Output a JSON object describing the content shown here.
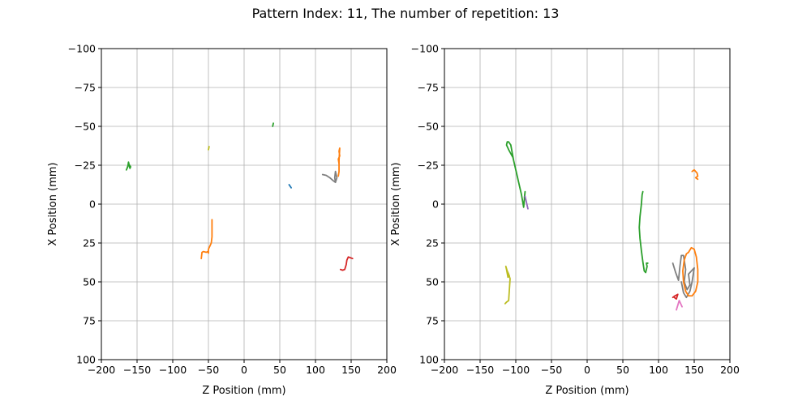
{
  "figure": {
    "title": "Pattern Index: 11, The number of repetition: 13"
  },
  "chart_data": [
    {
      "type": "line",
      "xlabel": "Z Position (mm)",
      "ylabel": "X Position (mm)",
      "xlim": [
        -200,
        200
      ],
      "ylim": [
        100,
        -100
      ],
      "y_inverted": true,
      "xticks": [
        -200,
        -150,
        -100,
        -50,
        0,
        50,
        100,
        150,
        200
      ],
      "yticks": [
        -100,
        -75,
        -50,
        -25,
        0,
        25,
        50,
        75,
        100
      ],
      "grid": true,
      "series": [
        {
          "color": "#1f77b4",
          "points": [
            [
              63,
              -12.5
            ],
            [
              64.5,
              -11.5
            ],
            [
              66,
              -10.5
            ]
          ]
        },
        {
          "color": "#ff7f0e",
          "points": [
            [
              -60,
              35
            ],
            [
              -59,
              31
            ],
            [
              -57,
              30.5
            ],
            [
              -53,
              31
            ],
            [
              -51,
              30.5
            ],
            [
              -50,
              31.5
            ],
            [
              -50,
              29
            ],
            [
              -48,
              27
            ],
            [
              -46,
              25
            ],
            [
              -45,
              21
            ],
            [
              -45,
              16
            ],
            [
              -45,
              10
            ]
          ]
        },
        {
          "color": "#ff7f0e",
          "points": [
            [
              132,
              -18
            ],
            [
              133,
              -21
            ],
            [
              133,
              -26
            ],
            [
              132,
              -29
            ],
            [
              134,
              -31
            ],
            [
              133,
              -34
            ],
            [
              134,
              -36
            ],
            [
              133,
              -28
            ],
            [
              133,
              -22
            ]
          ]
        },
        {
          "color": "#2ca02c",
          "points": [
            [
              -165,
              -22
            ],
            [
              -163,
              -24
            ],
            [
              -162,
              -27
            ],
            [
              -161,
              -25
            ],
            [
              -160,
              -23
            ],
            [
              -159,
              -24
            ],
            [
              -162,
              -26
            ],
            [
              -164,
              -23
            ]
          ]
        },
        {
          "color": "#2ca02c",
          "points": [
            [
              40,
              -50
            ],
            [
              40.5,
              -51
            ],
            [
              41,
              -52
            ]
          ]
        },
        {
          "color": "#d62728",
          "points": [
            [
              135,
              42
            ],
            [
              138,
              42.5
            ],
            [
              141,
              42
            ],
            [
              143,
              39
            ],
            [
              144,
              36
            ],
            [
              146,
              34
            ],
            [
              149,
              34.5
            ],
            [
              152,
              35
            ]
          ]
        },
        {
          "color": "#7f7f7f",
          "points": [
            [
              110,
              -19
            ],
            [
              115,
              -18.5
            ],
            [
              120,
              -17
            ],
            [
              125,
              -15
            ],
            [
              128,
              -14
            ],
            [
              130,
              -17
            ],
            [
              128,
              -21
            ],
            [
              127,
              -17
            ],
            [
              128,
              -14
            ]
          ]
        },
        {
          "color": "#bcbd22",
          "points": [
            [
              -50,
              -35
            ],
            [
              -49.5,
              -36
            ],
            [
              -49,
              -37
            ]
          ]
        }
      ]
    },
    {
      "type": "line",
      "xlabel": "Z Position (mm)",
      "ylabel": "X Position (mm)",
      "xlim": [
        -200,
        200
      ],
      "ylim": [
        100,
        -100
      ],
      "y_inverted": true,
      "xticks": [
        -200,
        -150,
        -100,
        -50,
        0,
        50,
        100,
        150,
        200
      ],
      "yticks": [
        -100,
        -75,
        -50,
        -25,
        0,
        25,
        50,
        75,
        100
      ],
      "grid": true,
      "series": [
        {
          "color": "#2ca02c",
          "points": [
            [
              -103,
              -28
            ],
            [
              -105,
              -33
            ],
            [
              -107,
              -38
            ],
            [
              -110,
              -40
            ],
            [
              -112,
              -40
            ],
            [
              -113,
              -38
            ],
            [
              -110,
              -35
            ],
            [
              -104,
              -30
            ],
            [
              -100,
              -22
            ],
            [
              -96,
              -14
            ],
            [
              -92,
              -6
            ],
            [
              -89,
              2
            ],
            [
              -87,
              -8
            ],
            [
              -88,
              -4
            ]
          ]
        },
        {
          "color": "#9467bd",
          "points": [
            [
              -87,
              -5
            ],
            [
              -85,
              -1
            ],
            [
              -83,
              3
            ]
          ]
        },
        {
          "color": "#2ca02c",
          "points": [
            [
              78,
              -8
            ],
            [
              77,
              -6
            ],
            [
              76,
              0
            ],
            [
              74,
              8
            ],
            [
              73,
              15
            ],
            [
              74,
              22
            ],
            [
              76,
              30
            ],
            [
              78,
              37
            ],
            [
              80,
              43
            ],
            [
              82,
              44
            ],
            [
              84,
              40
            ],
            [
              83,
              38
            ],
            [
              85,
              38
            ]
          ]
        },
        {
          "color": "#bcbd22",
          "points": [
            [
              -115,
              64
            ],
            [
              -113,
              63
            ],
            [
              -110,
              62
            ],
            [
              -109,
              55
            ],
            [
              -108,
              48
            ],
            [
              -110,
              45
            ],
            [
              -112,
              43
            ],
            [
              -114,
              40
            ],
            [
              -113,
              42
            ],
            [
              -111,
              47
            ],
            [
              -109,
              46
            ]
          ]
        },
        {
          "color": "#ff7f0e",
          "points": [
            [
              147,
              -21
            ],
            [
              150,
              -22
            ],
            [
              154,
              -20
            ],
            [
              155,
              -18
            ],
            [
              152,
              -17
            ],
            [
              155,
              -16
            ]
          ]
        },
        {
          "color": "#7f7f7f",
          "points": [
            [
              120,
              38
            ],
            [
              124,
              44
            ],
            [
              128,
              49
            ],
            [
              130,
              40
            ],
            [
              132,
              33
            ],
            [
              135,
              33
            ],
            [
              138,
              42
            ],
            [
              136,
              50
            ],
            [
              140,
              55
            ],
            [
              144,
              52
            ],
            [
              142,
              45
            ],
            [
              146,
              43
            ],
            [
              150,
              41
            ],
            [
              147,
              50
            ],
            [
              144,
              56
            ],
            [
              139,
              60
            ],
            [
              135,
              57
            ],
            [
              132,
              50
            ]
          ]
        },
        {
          "color": "#ff7f0e",
          "points": [
            [
              142,
              31
            ],
            [
              146,
              28
            ],
            [
              150,
              29
            ],
            [
              153,
              34
            ],
            [
              155,
              42
            ],
            [
              155,
              50
            ],
            [
              152,
              56
            ],
            [
              147,
              59
            ],
            [
              142,
              59
            ],
            [
              138,
              56
            ],
            [
              135,
              50
            ],
            [
              134,
              43
            ],
            [
              136,
              36
            ],
            [
              139,
              32
            ],
            [
              142,
              31
            ]
          ]
        },
        {
          "color": "#d62728",
          "points": [
            [
              120,
              60
            ],
            [
              123,
              59
            ],
            [
              127,
              58
            ],
            [
              125,
              61
            ],
            [
              122,
              60
            ]
          ]
        },
        {
          "color": "#e377c2",
          "points": [
            [
              125,
              68
            ],
            [
              127,
              65
            ],
            [
              129,
              62
            ],
            [
              131,
              64
            ],
            [
              133,
              66
            ]
          ]
        }
      ]
    }
  ]
}
